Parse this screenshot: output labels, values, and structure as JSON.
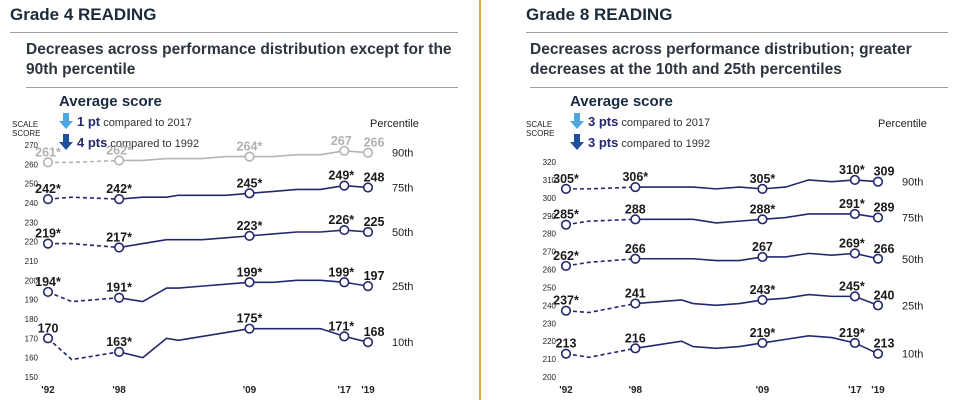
{
  "panels": [
    {
      "title": "Grade 4 READING",
      "subtitle": "Decreases across performance distribution except for the 90th percentile",
      "avg": {
        "title": "Average score",
        "line1_pts": "1 pt",
        "line1_rest": "compared to 2017",
        "line2_pts": "4 pts",
        "line2_rest": "compared to 1992"
      },
      "scale_label": [
        "SCALE",
        "SCORE"
      ],
      "percentile_header": "Percentile"
    },
    {
      "title": "Grade 8 READING",
      "subtitle": "Decreases across performance distribution; greater decreases at the 10th and 25th percentiles",
      "avg": {
        "title": "Average score",
        "line1_pts": "3 pts",
        "line1_rest": "compared to 2017",
        "line2_pts": "3 pts",
        "line2_rest": "compared to 1992"
      },
      "scale_label": [
        "SCALE",
        "SCORE"
      ],
      "percentile_header": "Percentile"
    }
  ],
  "colors": {
    "series": "#23286e",
    "series_gray": "#b4b4b4",
    "arrow_light": "#4da6e0",
    "arrow_dark": "#1f4e9c",
    "divider": "#e6a840"
  },
  "chart_data": [
    {
      "type": "line",
      "title": "Grade 4 READING",
      "ylim": [
        150,
        270
      ],
      "yticks": [
        150,
        160,
        170,
        180,
        190,
        200,
        210,
        220,
        230,
        240,
        250,
        260,
        270
      ],
      "xticks": [
        "'92",
        "'98",
        "'09",
        "'17",
        "'19"
      ],
      "series": [
        {
          "name": "90th",
          "gray": true,
          "x": [
            1992,
            1998,
            2009,
            2017,
            2019
          ],
          "y": [
            261,
            262,
            264,
            267,
            266
          ],
          "labels": [
            "261*",
            "262*",
            "264*",
            "267",
            "266"
          ],
          "full_x": [
            1992,
            1994,
            1998,
            2000,
            2002,
            2003,
            2005,
            2007,
            2009,
            2011,
            2013,
            2015,
            2017,
            2019
          ],
          "full_y": [
            261,
            261,
            262,
            262,
            263,
            263,
            263,
            264,
            264,
            264,
            265,
            265,
            267,
            266
          ]
        },
        {
          "name": "75th",
          "x": [
            1992,
            1998,
            2009,
            2017,
            2019
          ],
          "y": [
            242,
            242,
            245,
            249,
            248
          ],
          "labels": [
            "242*",
            "242*",
            "245*",
            "249*",
            "248"
          ],
          "full_x": [
            1992,
            1994,
            1998,
            2000,
            2002,
            2003,
            2005,
            2007,
            2009,
            2011,
            2013,
            2015,
            2017,
            2019
          ],
          "full_y": [
            242,
            243,
            242,
            243,
            243,
            244,
            244,
            244,
            245,
            246,
            247,
            247,
            249,
            248
          ]
        },
        {
          "name": "50th",
          "x": [
            1992,
            1998,
            2009,
            2017,
            2019
          ],
          "y": [
            219,
            217,
            223,
            226,
            225
          ],
          "labels": [
            "219*",
            "217*",
            "223*",
            "226*",
            "225"
          ],
          "full_x": [
            1992,
            1994,
            1998,
            2000,
            2002,
            2003,
            2005,
            2007,
            2009,
            2011,
            2013,
            2015,
            2017,
            2019
          ],
          "full_y": [
            219,
            219,
            217,
            219,
            221,
            221,
            221,
            222,
            223,
            224,
            225,
            225,
            226,
            225
          ]
        },
        {
          "name": "25th",
          "x": [
            1992,
            1998,
            2009,
            2017,
            2019
          ],
          "y": [
            194,
            191,
            199,
            199,
            197
          ],
          "labels": [
            "194*",
            "191*",
            "199*",
            "199*",
            "197"
          ],
          "full_x": [
            1992,
            1994,
            1998,
            2000,
            2002,
            2003,
            2005,
            2007,
            2009,
            2011,
            2013,
            2015,
            2017,
            2019
          ],
          "full_y": [
            194,
            189,
            191,
            189,
            196,
            196,
            197,
            198,
            199,
            199,
            200,
            200,
            199,
            197
          ]
        },
        {
          "name": "10th",
          "x": [
            1992,
            1998,
            2009,
            2017,
            2019
          ],
          "y": [
            170,
            163,
            175,
            171,
            168
          ],
          "labels": [
            "170",
            "163*",
            "175*",
            "171*",
            "168"
          ],
          "full_x": [
            1992,
            1994,
            1998,
            2000,
            2002,
            2003,
            2005,
            2007,
            2009,
            2011,
            2013,
            2015,
            2017,
            2019
          ],
          "full_y": [
            170,
            159,
            163,
            160,
            170,
            169,
            171,
            173,
            175,
            175,
            175,
            175,
            171,
            168
          ]
        }
      ]
    },
    {
      "type": "line",
      "title": "Grade 8 READING",
      "ylim": [
        200,
        320
      ],
      "yticks": [
        200,
        210,
        220,
        230,
        240,
        250,
        260,
        270,
        280,
        290,
        300,
        310,
        320
      ],
      "xticks": [
        "'92",
        "'98",
        "'09",
        "'17",
        "'19"
      ],
      "series": [
        {
          "name": "90th",
          "x": [
            1992,
            1998,
            2009,
            2017,
            2019
          ],
          "y": [
            305,
            306,
            305,
            310,
            309
          ],
          "labels": [
            "305*",
            "306*",
            "305*",
            "310*",
            "309"
          ],
          "full_x": [
            1992,
            1994,
            1998,
            2002,
            2003,
            2005,
            2007,
            2009,
            2011,
            2013,
            2015,
            2017,
            2019
          ],
          "full_y": [
            305,
            305,
            306,
            306,
            306,
            305,
            306,
            305,
            306,
            310,
            309,
            310,
            309
          ]
        },
        {
          "name": "75th",
          "x": [
            1992,
            1998,
            2009,
            2017,
            2019
          ],
          "y": [
            285,
            288,
            288,
            291,
            289
          ],
          "labels": [
            "285*",
            "288",
            "288*",
            "291*",
            "289"
          ],
          "full_x": [
            1992,
            1994,
            1998,
            2002,
            2003,
            2005,
            2007,
            2009,
            2011,
            2013,
            2015,
            2017,
            2019
          ],
          "full_y": [
            285,
            287,
            288,
            288,
            288,
            286,
            287,
            288,
            289,
            291,
            291,
            291,
            289
          ]
        },
        {
          "name": "50th",
          "x": [
            1992,
            1998,
            2009,
            2017,
            2019
          ],
          "y": [
            262,
            266,
            267,
            269,
            266
          ],
          "labels": [
            "262*",
            "266",
            "267",
            "269*",
            "266"
          ],
          "full_x": [
            1992,
            1994,
            1998,
            2002,
            2003,
            2005,
            2007,
            2009,
            2011,
            2013,
            2015,
            2017,
            2019
          ],
          "full_y": [
            262,
            264,
            266,
            266,
            266,
            265,
            265,
            267,
            267,
            269,
            268,
            269,
            266
          ]
        },
        {
          "name": "25th",
          "x": [
            1992,
            1998,
            2009,
            2017,
            2019
          ],
          "y": [
            237,
            241,
            243,
            245,
            240
          ],
          "labels": [
            "237*",
            "241",
            "243*",
            "245*",
            "240"
          ],
          "full_x": [
            1992,
            1994,
            1998,
            2002,
            2003,
            2005,
            2007,
            2009,
            2011,
            2013,
            2015,
            2017,
            2019
          ],
          "full_y": [
            237,
            236,
            241,
            243,
            241,
            240,
            241,
            243,
            244,
            246,
            245,
            245,
            240
          ]
        },
        {
          "name": "10th",
          "x": [
            1992,
            1998,
            2009,
            2017,
            2019
          ],
          "y": [
            213,
            216,
            219,
            219,
            213
          ],
          "labels": [
            "213",
            "216",
            "219*",
            "219*",
            "213"
          ],
          "full_x": [
            1992,
            1994,
            1998,
            2002,
            2003,
            2005,
            2007,
            2009,
            2011,
            2013,
            2015,
            2017,
            2019
          ],
          "full_y": [
            213,
            211,
            216,
            220,
            217,
            216,
            217,
            219,
            221,
            223,
            222,
            219,
            213
          ]
        }
      ]
    }
  ]
}
